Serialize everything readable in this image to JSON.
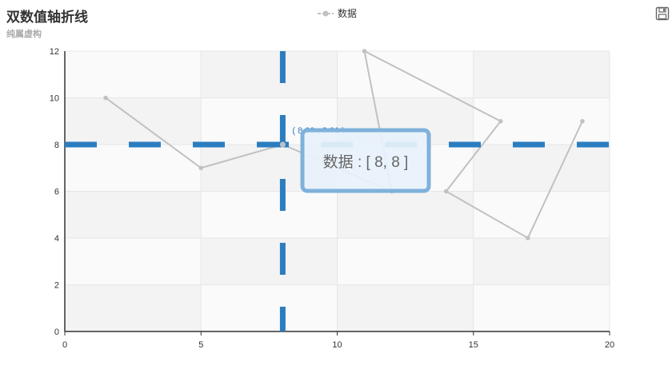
{
  "title": "双数值轴折线",
  "subtitle": "纯属虚构",
  "legend": {
    "label": "数据"
  },
  "toolbox": {
    "icon": "save-image-icon"
  },
  "crosshair": {
    "label": "( 8.00 , 8.01 )"
  },
  "tooltip": {
    "text": "数据 : [ 8, 8 ]"
  },
  "colors": {
    "series": "#c1c1c1",
    "crosshair": "#2b7dc0",
    "tooltip_border": "#7fb1db",
    "tooltip_bg": "#e8f2fb"
  },
  "chart_data": {
    "type": "line",
    "title": "双数值轴折线",
    "subtitle": "纯属虚构",
    "xlim": [
      0,
      20
    ],
    "ylim": [
      0,
      12
    ],
    "xticks": [
      0,
      5,
      10,
      15,
      20
    ],
    "yticks": [
      0,
      2,
      4,
      6,
      8,
      10,
      12
    ],
    "grid": true,
    "legend_position": "top-center",
    "series": [
      {
        "name": "数据",
        "points": [
          [
            1.5,
            10
          ],
          [
            5,
            7
          ],
          [
            8,
            8
          ],
          [
            12,
            6
          ],
          [
            11,
            12
          ],
          [
            16,
            9
          ],
          [
            14,
            6
          ],
          [
            17,
            4
          ],
          [
            19,
            9
          ]
        ]
      }
    ]
  }
}
